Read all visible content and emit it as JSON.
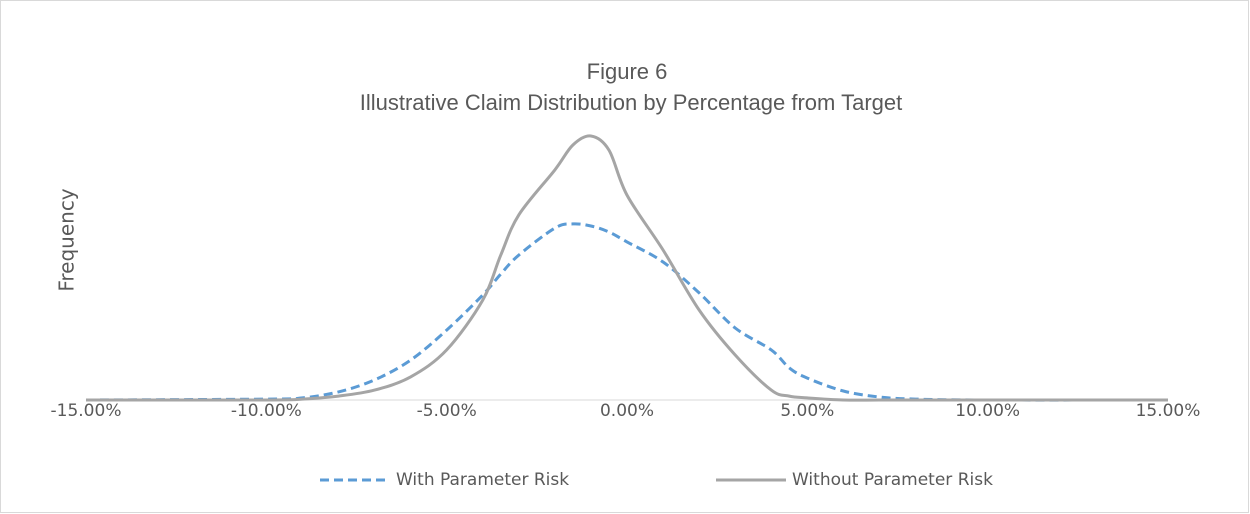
{
  "chart_data": {
    "type": "line",
    "title": "Figure 6",
    "subtitle": "Illustrative Claim Distribution by Percentage from Target",
    "y_label": "Frequency",
    "x": [
      -15,
      -10,
      -9,
      -8,
      -7,
      -6,
      -5,
      -4,
      -3.5,
      -3,
      -2,
      -1.5,
      -1,
      -0.5,
      0,
      1,
      2,
      3,
      4,
      4.5,
      5,
      6,
      7,
      8,
      10,
      15
    ],
    "series": [
      {
        "name": "With Parameter Risk",
        "color": "#5b9bd5",
        "style": "dashed",
        "values": [
          0,
          0.3,
          0.7,
          2.7,
          6.7,
          13.3,
          23.3,
          35,
          42,
          48.3,
          57.3,
          58.7,
          58,
          56,
          52.7,
          46,
          35.7,
          24,
          16.7,
          10.7,
          7.3,
          3,
          1,
          0.3,
          0,
          0
        ]
      },
      {
        "name": "Without Parameter Risk",
        "color": "#a5a5a5",
        "style": "solid",
        "values": [
          0,
          0,
          0.3,
          1.3,
          3.3,
          7.7,
          16.7,
          33.3,
          48.3,
          61.7,
          76.7,
          85,
          88,
          83.3,
          68.3,
          50,
          30,
          15,
          3.3,
          1.3,
          0.7,
          0,
          0,
          0,
          0,
          0
        ]
      }
    ],
    "xlim": [
      -15,
      15
    ],
    "xticks": [
      {
        "value": -15,
        "label": "-15.00%"
      },
      {
        "value": -10,
        "label": "-10.00%"
      },
      {
        "value": -5,
        "label": "-5.00%"
      },
      {
        "value": 0,
        "label": "0.00%"
      },
      {
        "value": 5,
        "label": "5.00%"
      },
      {
        "value": 10,
        "label": "10.00%"
      },
      {
        "value": 15,
        "label": "15.00%"
      }
    ],
    "ylim": [
      0,
      100
    ],
    "legend": "bottom"
  }
}
